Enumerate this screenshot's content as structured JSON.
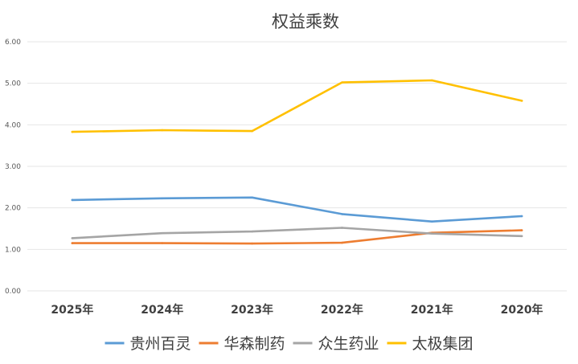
{
  "chart_data": {
    "type": "line",
    "title": "权益乘数",
    "xlabel": "",
    "ylabel": "",
    "categories": [
      "2025年",
      "2024年",
      "2023年",
      "2022年",
      "2021年",
      "2020年"
    ],
    "yticks": [
      "0.00",
      "1.00",
      "2.00",
      "3.00",
      "4.00",
      "5.00",
      "6.00"
    ],
    "ylim": [
      0,
      6
    ],
    "grid": true,
    "legend_position": "bottom",
    "series": [
      {
        "name": "贵州百灵",
        "color": "#5B9BD5",
        "values": [
          2.19,
          2.23,
          2.25,
          1.85,
          1.67,
          1.8
        ]
      },
      {
        "name": "华森制药",
        "color": "#ED7D31",
        "values": [
          1.15,
          1.15,
          1.14,
          1.16,
          1.4,
          1.46
        ]
      },
      {
        "name": "众生药业",
        "color": "#A5A5A5",
        "values": [
          1.27,
          1.39,
          1.43,
          1.52,
          1.38,
          1.32
        ]
      },
      {
        "name": "太极集团",
        "color": "#FFC000",
        "values": [
          3.83,
          3.87,
          3.85,
          5.02,
          5.07,
          4.58
        ]
      }
    ]
  }
}
